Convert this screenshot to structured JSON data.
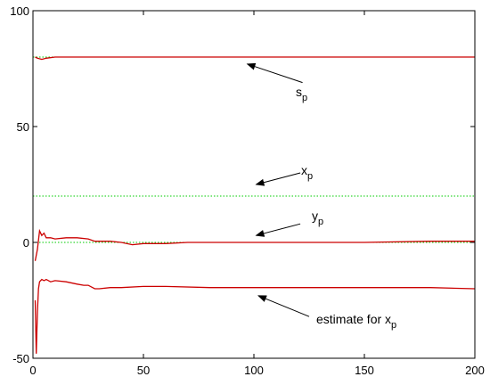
{
  "chart_data": {
    "type": "line",
    "title": "",
    "xlabel": "",
    "ylabel": "",
    "xlim": [
      0,
      200
    ],
    "ylim": [
      -50,
      100
    ],
    "xticks": [
      0,
      50,
      100,
      150,
      200
    ],
    "yticks": [
      -50,
      0,
      50,
      100
    ],
    "grid": false,
    "series": [
      {
        "key": "s_p_true",
        "color": "#00cc00",
        "dash": true,
        "x": [
          0,
          200
        ],
        "y": [
          80,
          80
        ]
      },
      {
        "key": "s_p_estimate",
        "color": "#cc0000",
        "dash": false,
        "x": [
          1,
          2,
          4,
          6,
          10,
          20,
          40,
          100,
          200
        ],
        "y": [
          80,
          79.5,
          79,
          79.5,
          80,
          80,
          80,
          80,
          80
        ]
      },
      {
        "key": "x_p_true",
        "color": "#00cc00",
        "dash": true,
        "x": [
          0,
          200
        ],
        "y": [
          20,
          20
        ]
      },
      {
        "key": "y_p_true",
        "color": "#00cc00",
        "dash": true,
        "x": [
          0,
          200
        ],
        "y": [
          0,
          0
        ]
      },
      {
        "key": "y_p_estimate",
        "color": "#cc0000",
        "dash": false,
        "x": [
          1,
          2,
          3,
          4,
          5,
          6,
          8,
          10,
          15,
          20,
          25,
          28,
          30,
          35,
          40,
          45,
          50,
          60,
          70,
          80,
          100,
          120,
          150,
          180,
          200
        ],
        "y": [
          -8,
          -3,
          5,
          3,
          4,
          2,
          2,
          1.5,
          2,
          2,
          1.5,
          0.5,
          0.5,
          0.5,
          0,
          -1,
          -0.5,
          -0.5,
          0,
          0,
          0,
          0,
          0,
          0.5,
          0.5
        ]
      },
      {
        "key": "x_p_estimate",
        "color": "#cc0000",
        "dash": false,
        "x": [
          1,
          1.5,
          2,
          2.5,
          3,
          4,
          5,
          6,
          8,
          10,
          15,
          20,
          23,
          25,
          28,
          30,
          35,
          40,
          50,
          60,
          80,
          100,
          120,
          150,
          180,
          200
        ],
        "y": [
          -25,
          -48,
          -30,
          -20,
          -17,
          -16,
          -16.5,
          -16,
          -17,
          -16.5,
          -17,
          -18,
          -18.5,
          -18.5,
          -20,
          -20,
          -19.5,
          -19.5,
          -19,
          -19,
          -19.5,
          -19.5,
          -19.5,
          -19.5,
          -19.5,
          -20
        ]
      }
    ],
    "annotations": [
      {
        "key": "s_p",
        "base": "s",
        "sub": "p",
        "text": "s_p",
        "arrow_from": [
          122,
          69
        ],
        "arrow_to": [
          97,
          77
        ]
      },
      {
        "key": "x_p",
        "base": "x",
        "sub": "p",
        "text": "x_p",
        "arrow_from": [
          121,
          30
        ],
        "arrow_to": [
          101,
          25
        ]
      },
      {
        "key": "y_p",
        "base": "y",
        "sub": "p",
        "text": "y_p",
        "arrow_from": [
          121,
          8
        ],
        "arrow_to": [
          101,
          3
        ]
      },
      {
        "key": "x_p_estimate",
        "base": "estimate for x",
        "sub": "p",
        "text": "estimate for x_p",
        "arrow_from": [
          125,
          -32
        ],
        "arrow_to": [
          102,
          -23
        ]
      }
    ]
  }
}
